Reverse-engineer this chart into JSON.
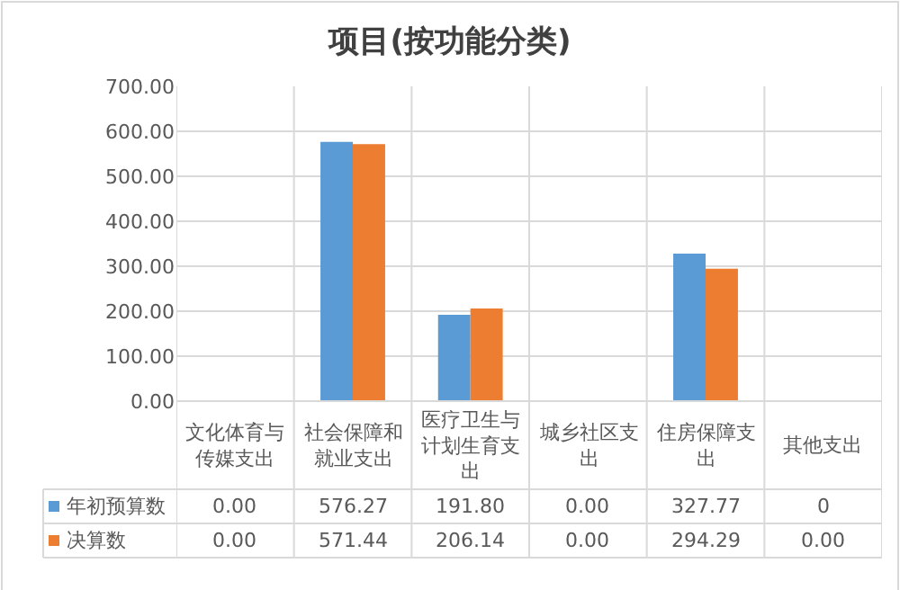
{
  "chart_data": {
    "type": "bar",
    "title": "项目(按功能分类)",
    "categories": [
      "文化体育与传媒支出",
      "社会保障和就业支出",
      "医疗卫生与计划生育支出",
      "城乡社区支出",
      "住房保障支出",
      "其他支出"
    ],
    "series": [
      {
        "name": "年初预算数",
        "color": "#5b9bd5",
        "values": [
          0.0,
          576.27,
          191.8,
          0.0,
          327.77,
          0
        ],
        "value_labels": [
          "0.00",
          "576.27",
          "191.80",
          "0.00",
          "327.77",
          "0"
        ]
      },
      {
        "name": "决算数",
        "color": "#ed7d31",
        "values": [
          0.0,
          571.44,
          206.14,
          0.0,
          294.29,
          0.0
        ],
        "value_labels": [
          "0.00",
          "571.44",
          "206.14",
          "0.00",
          "294.29",
          "0.00"
        ]
      }
    ],
    "ylim": [
      0,
      700
    ],
    "yticks": [
      {
        "value": 0,
        "label": "0.00"
      },
      {
        "value": 100,
        "label": "100.00"
      },
      {
        "value": 200,
        "label": "200.00"
      },
      {
        "value": 300,
        "label": "300.00"
      },
      {
        "value": 400,
        "label": "400.00"
      },
      {
        "value": 500,
        "label": "500.00"
      },
      {
        "value": 600,
        "label": "600.00"
      },
      {
        "value": 700,
        "label": "700.00"
      }
    ],
    "grid": "y",
    "legend": "bottom"
  }
}
